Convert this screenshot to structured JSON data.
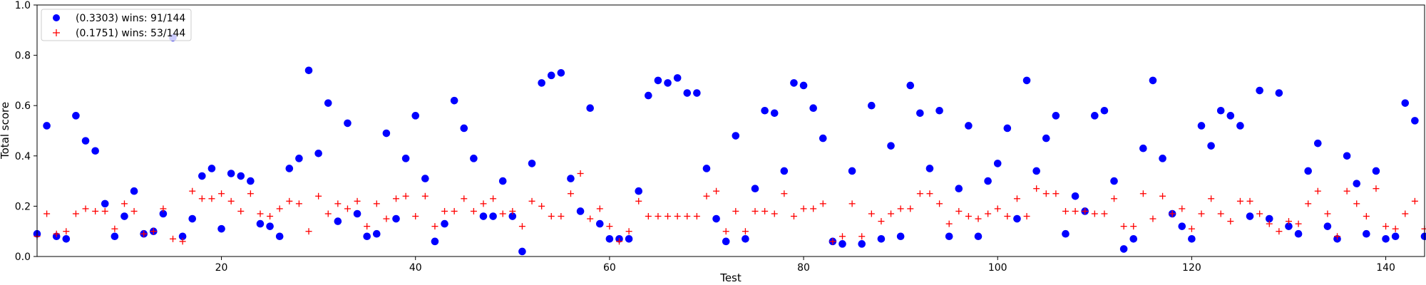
{
  "chart_data": {
    "type": "scatter",
    "title": "",
    "xlabel": "Test",
    "ylabel": "Total score",
    "xlim": [
      1,
      144
    ],
    "ylim": [
      0,
      1.0
    ],
    "xticks": [
      20,
      40,
      60,
      80,
      100,
      120,
      140
    ],
    "yticks": [
      0.0,
      0.2,
      0.4,
      0.6,
      0.8,
      1.0
    ],
    "xtick_labels": [
      "20",
      "40",
      "60",
      "80",
      "100",
      "120",
      "140"
    ],
    "ytick_labels": [
      "0.0",
      "0.2",
      "0.4",
      "0.6",
      "0.8",
      "1.0"
    ],
    "grid": false,
    "legend_position": "upper-left",
    "series": [
      {
        "name": "(0.3303) wins: 91/144",
        "marker": "circle",
        "color": "#0000ff",
        "x": [
          1,
          2,
          3,
          4,
          5,
          6,
          7,
          8,
          9,
          10,
          11,
          12,
          13,
          14,
          15,
          16,
          17,
          18,
          19,
          20,
          21,
          22,
          23,
          24,
          25,
          26,
          27,
          28,
          29,
          30,
          31,
          32,
          33,
          34,
          35,
          36,
          37,
          38,
          39,
          40,
          41,
          42,
          43,
          44,
          45,
          46,
          47,
          48,
          49,
          50,
          51,
          52,
          53,
          54,
          55,
          56,
          57,
          58,
          59,
          60,
          61,
          62,
          63,
          64,
          65,
          66,
          67,
          68,
          69,
          70,
          71,
          72,
          73,
          74,
          75,
          76,
          77,
          78,
          79,
          80,
          81,
          82,
          83,
          84,
          85,
          86,
          87,
          88,
          89,
          90,
          91,
          92,
          93,
          94,
          95,
          96,
          97,
          98,
          99,
          100,
          101,
          102,
          103,
          104,
          105,
          106,
          107,
          108,
          109,
          110,
          111,
          112,
          113,
          114,
          115,
          116,
          117,
          118,
          119,
          120,
          121,
          122,
          123,
          124,
          125,
          126,
          127,
          128,
          129,
          130,
          131,
          132,
          133,
          134,
          135,
          136,
          137,
          138,
          139,
          140,
          141,
          142,
          143,
          144
        ],
        "y": [
          0.09,
          0.52,
          0.08,
          0.07,
          0.56,
          0.46,
          0.42,
          0.21,
          0.08,
          0.16,
          0.26,
          0.09,
          0.1,
          0.17,
          0.87,
          0.08,
          0.15,
          0.32,
          0.35,
          0.11,
          0.33,
          0.32,
          0.3,
          0.13,
          0.12,
          0.08,
          0.35,
          0.39,
          0.74,
          0.41,
          0.61,
          0.14,
          0.53,
          0.17,
          0.08,
          0.09,
          0.49,
          0.15,
          0.39,
          0.56,
          0.31,
          0.06,
          0.13,
          0.62,
          0.51,
          0.39,
          0.16,
          0.16,
          0.3,
          0.16,
          0.02,
          0.37,
          0.69,
          0.72,
          0.73,
          0.31,
          0.18,
          0.59,
          0.13,
          0.07,
          0.07,
          0.07,
          0.26,
          0.64,
          0.7,
          0.69,
          0.71,
          0.65,
          0.65,
          0.35,
          0.15,
          0.06,
          0.48,
          0.07,
          0.27,
          0.58,
          0.57,
          0.34,
          0.69,
          0.68,
          0.59,
          0.47,
          0.06,
          0.05,
          0.34,
          0.05,
          0.6,
          0.07,
          0.44,
          0.08,
          0.68,
          0.57,
          0.35,
          0.58,
          0.08,
          0.27,
          0.52,
          0.08,
          0.3,
          0.37,
          0.51,
          0.15,
          0.7,
          0.34,
          0.47,
          0.56,
          0.09,
          0.24,
          0.18,
          0.56,
          0.58,
          0.3,
          0.03,
          0.07,
          0.43,
          0.7,
          0.39,
          0.17,
          0.12,
          0.07,
          0.52,
          0.44,
          0.58,
          0.56,
          0.52,
          0.16,
          0.66,
          0.15,
          0.65,
          0.12,
          0.09,
          0.34,
          0.45,
          0.12,
          0.07,
          0.4,
          0.29,
          0.09,
          0.34,
          0.07,
          0.08,
          0.61,
          0.54,
          0.08
        ]
      },
      {
        "name": "(0.1751) wins: 53/144",
        "marker": "plus",
        "color": "#ff0000",
        "x": [
          1,
          2,
          3,
          4,
          5,
          6,
          7,
          8,
          9,
          10,
          11,
          12,
          13,
          14,
          15,
          16,
          17,
          18,
          19,
          20,
          21,
          22,
          23,
          24,
          25,
          26,
          27,
          28,
          29,
          30,
          31,
          32,
          33,
          34,
          35,
          36,
          37,
          38,
          39,
          40,
          41,
          42,
          43,
          44,
          45,
          46,
          47,
          48,
          49,
          50,
          51,
          52,
          53,
          54,
          55,
          56,
          57,
          58,
          59,
          60,
          61,
          62,
          63,
          64,
          65,
          66,
          67,
          68,
          69,
          70,
          71,
          72,
          73,
          74,
          75,
          76,
          77,
          78,
          79,
          80,
          81,
          82,
          83,
          84,
          85,
          86,
          87,
          88,
          89,
          90,
          91,
          92,
          93,
          94,
          95,
          96,
          97,
          98,
          99,
          100,
          101,
          102,
          103,
          104,
          105,
          106,
          107,
          108,
          109,
          110,
          111,
          112,
          113,
          114,
          115,
          116,
          117,
          118,
          119,
          120,
          121,
          122,
          123,
          124,
          125,
          126,
          127,
          128,
          129,
          130,
          131,
          132,
          133,
          134,
          135,
          136,
          137,
          138,
          139,
          140,
          141,
          142,
          143,
          144
        ],
        "y": [
          0.08,
          0.17,
          0.09,
          0.1,
          0.17,
          0.19,
          0.18,
          0.18,
          0.11,
          0.21,
          0.18,
          0.09,
          0.1,
          0.19,
          0.07,
          0.06,
          0.26,
          0.23,
          0.23,
          0.25,
          0.22,
          0.18,
          0.25,
          0.17,
          0.16,
          0.19,
          0.22,
          0.21,
          0.1,
          0.24,
          0.17,
          0.21,
          0.19,
          0.22,
          0.12,
          0.21,
          0.15,
          0.23,
          0.24,
          0.16,
          0.24,
          0.12,
          0.18,
          0.18,
          0.23,
          0.18,
          0.21,
          0.23,
          0.17,
          0.18,
          0.12,
          0.22,
          0.2,
          0.16,
          0.16,
          0.25,
          0.33,
          0.15,
          0.19,
          0.12,
          0.06,
          0.1,
          0.22,
          0.16,
          0.16,
          0.16,
          0.16,
          0.16,
          0.16,
          0.24,
          0.26,
          0.1,
          0.18,
          0.1,
          0.18,
          0.18,
          0.17,
          0.25,
          0.16,
          0.19,
          0.19,
          0.21,
          0.06,
          0.08,
          0.21,
          0.08,
          0.17,
          0.14,
          0.17,
          0.19,
          0.19,
          0.25,
          0.25,
          0.21,
          0.13,
          0.18,
          0.16,
          0.15,
          0.17,
          0.19,
          0.16,
          0.23,
          0.16,
          0.27,
          0.25,
          0.25,
          0.18,
          0.18,
          0.18,
          0.17,
          0.17,
          0.23,
          0.12,
          0.12,
          0.25,
          0.15,
          0.24,
          0.17,
          0.19,
          0.11,
          0.17,
          0.23,
          0.17,
          0.14,
          0.22,
          0.22,
          0.17,
          0.13,
          0.1,
          0.14,
          0.13,
          0.21,
          0.26,
          0.17,
          0.08,
          0.26,
          0.21,
          0.16,
          0.27,
          0.12,
          0.11,
          0.17,
          0.22,
          0.11
        ]
      }
    ]
  }
}
